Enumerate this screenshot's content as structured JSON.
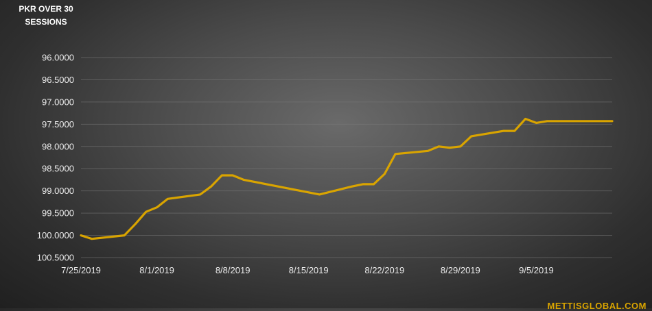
{
  "chart_data": {
    "type": "line",
    "title": "PKR OVER 30\nSESSIONS",
    "xlabel": "",
    "ylabel": "",
    "y_axis_inverted": true,
    "ylim": [
      96.0,
      100.5
    ],
    "y_ticks": [
      "96.0000",
      "96.5000",
      "97.0000",
      "97.5000",
      "98.0000",
      "98.5000",
      "99.0000",
      "99.5000",
      "100.0000",
      "100.5000"
    ],
    "x_ticks": [
      "7/25/2019",
      "8/1/2019",
      "8/8/2019",
      "8/15/2019",
      "8/22/2019",
      "8/29/2019",
      "9/5/2019"
    ],
    "x_range": [
      "2019-07-25",
      "2019-09-12"
    ],
    "grid": true,
    "line_color": "#d9a400",
    "series": [
      {
        "x": [
          "2019-07-25",
          "2019-07-26",
          "2019-07-29",
          "2019-07-30",
          "2019-07-31",
          "2019-08-01",
          "2019-08-02",
          "2019-08-05",
          "2019-08-06",
          "2019-08-07",
          "2019-08-08",
          "2019-08-09",
          "2019-08-16",
          "2019-08-19",
          "2019-08-20",
          "2019-08-21",
          "2019-08-22",
          "2019-08-23",
          "2019-08-26",
          "2019-08-27",
          "2019-08-28",
          "2019-08-29",
          "2019-08-30",
          "2019-09-02",
          "2019-09-03",
          "2019-09-04",
          "2019-09-05",
          "2019-09-06",
          "2019-09-09",
          "2019-09-10",
          "2019-09-11",
          "2019-09-12"
        ],
        "values": [
          100.0,
          100.08,
          100.0,
          99.75,
          99.47,
          99.37,
          99.18,
          99.08,
          98.9,
          98.65,
          98.65,
          98.75,
          99.08,
          98.9,
          98.85,
          98.85,
          98.62,
          98.17,
          98.1,
          98.0,
          98.03,
          98.0,
          97.77,
          97.65,
          97.65,
          97.38,
          97.47,
          97.43,
          97.43,
          97.43,
          97.43,
          97.43
        ]
      }
    ]
  },
  "watermark": "METTISGLOBAL.COM"
}
